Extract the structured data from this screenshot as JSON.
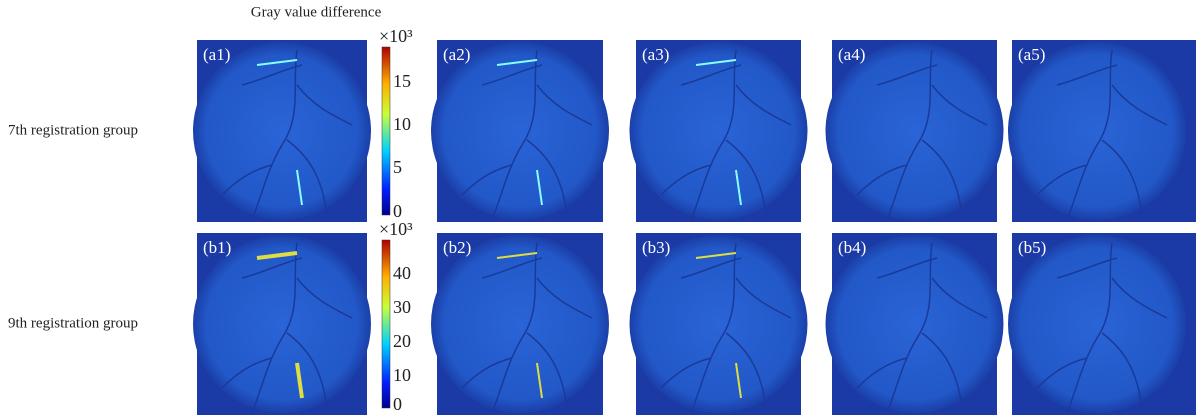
{
  "colorbar_title": "Gray value difference",
  "rows": [
    {
      "label": "7th registration group",
      "panels": [
        "(a1)",
        "(a2)",
        "(a3)",
        "(a4)",
        "(a5)"
      ],
      "colorbar": {
        "exponent": "×10³",
        "ticks": [
          15,
          10,
          5,
          0
        ]
      }
    },
    {
      "label": "9th registration group",
      "panels": [
        "(b1)",
        "(b2)",
        "(b3)",
        "(b4)",
        "(b5)"
      ],
      "colorbar": {
        "exponent": "×10³",
        "ticks": [
          40,
          30,
          20,
          10,
          0
        ]
      }
    }
  ]
}
